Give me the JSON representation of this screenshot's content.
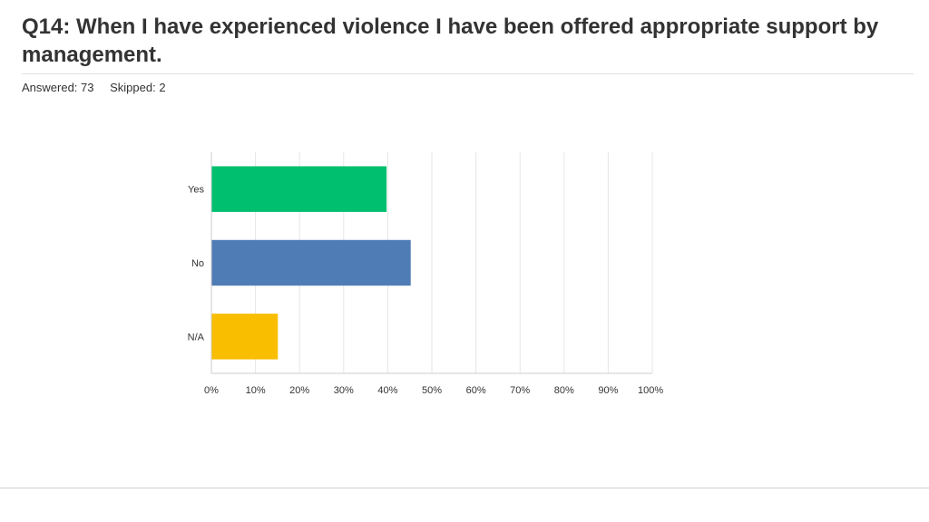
{
  "header": {
    "title": "Q14: When I have experienced violence I have been offered appropriate support by management.",
    "answered": "Answered: 73",
    "skipped": "Skipped: 2"
  },
  "chart_data": {
    "type": "bar",
    "orientation": "horizontal",
    "categories": [
      "Yes",
      "No",
      "N/A"
    ],
    "values": [
      39.73,
      45.21,
      15.07
    ],
    "colors": [
      "#00bf6f",
      "#507cb6",
      "#f9be00"
    ],
    "xlim": [
      0,
      100
    ],
    "xticks": [
      "0%",
      "10%",
      "20%",
      "30%",
      "40%",
      "50%",
      "60%",
      "70%",
      "80%",
      "90%",
      "100%"
    ],
    "grid": true
  }
}
